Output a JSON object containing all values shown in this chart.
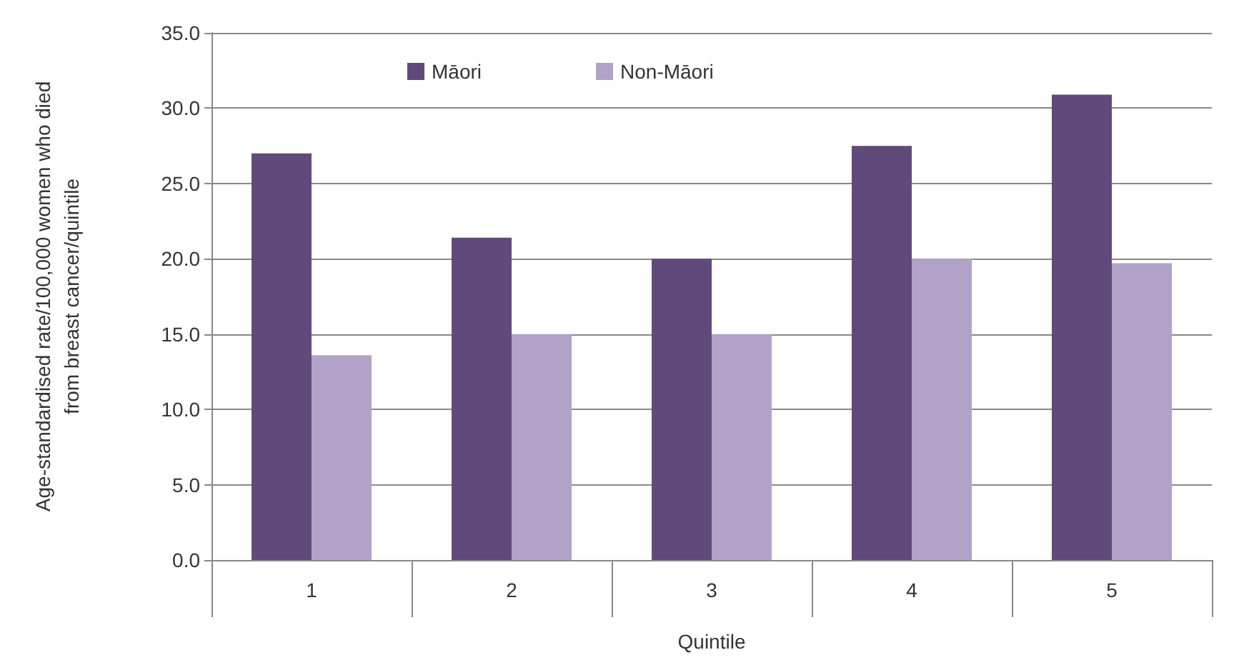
{
  "chart_data": {
    "type": "bar",
    "xlabel": "Quintile",
    "ylabel": "Age-standardised rate/100,000 women who died from breast cancer/quintile",
    "categories": [
      "1",
      "2",
      "3",
      "4",
      "5"
    ],
    "series": [
      {
        "name": "Māori",
        "color": "#604a7b",
        "values": [
          27.0,
          21.4,
          20.0,
          27.5,
          30.9
        ]
      },
      {
        "name": "Non-Māori",
        "color": "#b3a2c7",
        "values": [
          13.6,
          15.0,
          15.0,
          20.0,
          19.7
        ]
      }
    ],
    "ylim": [
      0,
      35
    ],
    "yticks": [
      {
        "value": 0,
        "label": "0.0"
      },
      {
        "value": 5,
        "label": "5.0"
      },
      {
        "value": 10,
        "label": "10.0"
      },
      {
        "value": 15,
        "label": "15.0"
      },
      {
        "value": 20,
        "label": "20.0"
      },
      {
        "value": 25,
        "label": "25.0"
      },
      {
        "value": 30,
        "label": "30.0"
      },
      {
        "value": 35,
        "label": "35.0"
      }
    ],
    "grid": "y",
    "legend": "top"
  }
}
